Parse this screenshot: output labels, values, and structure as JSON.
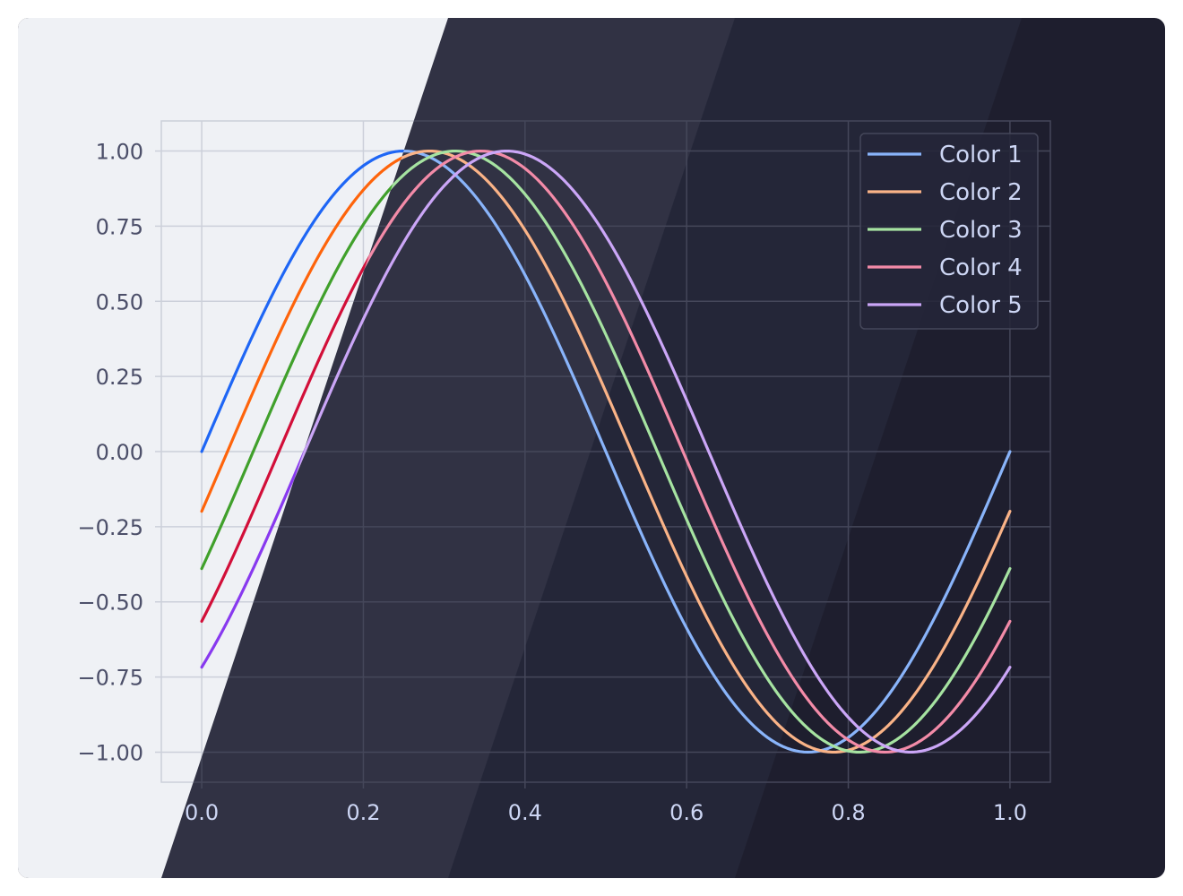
{
  "chart_data": {
    "type": "line",
    "title": "",
    "xlabel": "",
    "ylabel": "",
    "xlim": [
      -0.05,
      1.05
    ],
    "ylim": [
      -1.1,
      1.1
    ],
    "xticks": [
      0.0,
      0.2,
      0.4,
      0.6,
      0.8,
      1.0
    ],
    "xtick_labels": [
      "0.0",
      "0.2",
      "0.4",
      "0.6",
      "0.8",
      "1.0"
    ],
    "yticks": [
      1.0,
      0.75,
      0.5,
      0.25,
      0.0,
      -0.25,
      -0.5,
      -0.75,
      -1.0
    ],
    "ytick_labels": [
      "1.00",
      "0.75",
      "0.50",
      "0.25",
      "0.00",
      "−0.25",
      "−0.50",
      "−0.75",
      "−1.00"
    ],
    "grid": true,
    "legend_position": "top-right",
    "function": "sin(2*pi*x - phase)",
    "x_range": [
      0,
      1
    ],
    "series": [
      {
        "name": "Color 1",
        "phase": 0.0,
        "color_light": "#1e66f5",
        "color_dark": "#89b4fa"
      },
      {
        "name": "Color 2",
        "phase": 0.2,
        "color_light": "#fe640b",
        "color_dark": "#fab387"
      },
      {
        "name": "Color 3",
        "phase": 0.4,
        "color_light": "#40a02b",
        "color_dark": "#a6e3a1"
      },
      {
        "name": "Color 4",
        "phase": 0.6,
        "color_light": "#d20f39",
        "color_dark": "#f38ba8"
      },
      {
        "name": "Color 5",
        "phase": 0.8,
        "color_light": "#8839ef",
        "color_dark": "#cba6f7"
      }
    ],
    "background_colors": {
      "light": "#eff1f5",
      "dark_1": "#313244",
      "dark_2": "#242638",
      "dark_3": "#1e1e2e",
      "grid_light": "#ccd0da",
      "grid_dark": "#45475a",
      "tick_light": "#4c4f69",
      "tick_dark": "#cdd6f4"
    }
  }
}
